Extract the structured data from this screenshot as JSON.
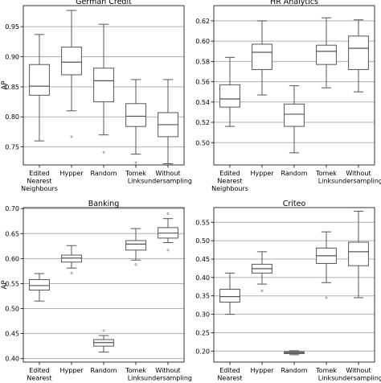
{
  "chart_data": [
    {
      "type": "box",
      "title": "German Credit",
      "ylabel": "AP",
      "xlabel": "",
      "ylim": [
        0.72,
        0.985
      ],
      "yticks": [
        0.75,
        0.8,
        0.85,
        0.9,
        0.95
      ],
      "tick_labels": [
        "0.75",
        "0.80",
        "0.85",
        "0.90",
        "0.95"
      ],
      "grid": "horizontal",
      "categories": [
        [
          "Edited",
          "Nearest",
          "Neighbours"
        ],
        [
          "Hypper"
        ],
        [
          "Random"
        ],
        [
          "Tomek",
          "Links"
        ],
        [
          "Without",
          "undersampling"
        ]
      ],
      "boxes": [
        {
          "whislo": 0.76,
          "q1": 0.836,
          "med": 0.851,
          "q3": 0.887,
          "whishi": 0.937,
          "fliers": []
        },
        {
          "whislo": 0.81,
          "q1": 0.87,
          "med": 0.891,
          "q3": 0.916,
          "whishi": 0.977,
          "fliers": [
            0.767
          ]
        },
        {
          "whislo": 0.77,
          "q1": 0.825,
          "med": 0.86,
          "q3": 0.881,
          "whishi": 0.954,
          "fliers": [
            0.741
          ]
        },
        {
          "whislo": 0.738,
          "q1": 0.784,
          "med": 0.801,
          "q3": 0.822,
          "whishi": 0.862,
          "fliers": [
            0.724
          ]
        },
        {
          "whislo": 0.722,
          "q1": 0.767,
          "med": 0.787,
          "q3": 0.807,
          "whishi": 0.862,
          "fliers": []
        }
      ]
    },
    {
      "type": "box",
      "title": "HR Analytics",
      "ylabel": "",
      "xlabel": "",
      "ylim": [
        0.478,
        0.635
      ],
      "yticks": [
        0.5,
        0.52,
        0.54,
        0.56,
        0.58,
        0.6,
        0.62
      ],
      "tick_labels": [
        "0.50",
        "0.52",
        "0.54",
        "0.56",
        "0.58",
        "0.60",
        "0.62"
      ],
      "grid": "horizontal",
      "categories": [
        [
          "Edited",
          "Nearest",
          "Neighbours"
        ],
        [
          "Hypper"
        ],
        [
          "Random"
        ],
        [
          "Tomek",
          "Links"
        ],
        [
          "Without",
          "undersampling"
        ]
      ],
      "boxes": [
        {
          "whislo": 0.516,
          "q1": 0.535,
          "med": 0.543,
          "q3": 0.557,
          "whishi": 0.584,
          "fliers": []
        },
        {
          "whislo": 0.547,
          "q1": 0.572,
          "med": 0.589,
          "q3": 0.597,
          "whishi": 0.62,
          "fliers": []
        },
        {
          "whislo": 0.49,
          "q1": 0.516,
          "med": 0.528,
          "q3": 0.538,
          "whishi": 0.556,
          "fliers": []
        },
        {
          "whislo": 0.554,
          "q1": 0.577,
          "med": 0.59,
          "q3": 0.596,
          "whishi": 0.623,
          "fliers": []
        },
        {
          "whislo": 0.55,
          "q1": 0.572,
          "med": 0.593,
          "q3": 0.605,
          "whishi": 0.621,
          "fliers": []
        }
      ]
    },
    {
      "type": "box",
      "title": "Banking",
      "ylabel": "AP",
      "xlabel": "",
      "ylim": [
        0.393,
        0.702
      ],
      "yticks": [
        0.4,
        0.45,
        0.5,
        0.55,
        0.6,
        0.65,
        0.7
      ],
      "tick_labels": [
        "0.40",
        "0.45",
        "0.50",
        "0.55",
        "0.60",
        "0.65",
        "0.70"
      ],
      "grid": "horizontal",
      "categories": [
        [
          "Edited",
          "Nearest",
          "Neighbours"
        ],
        [
          "Hypper"
        ],
        [
          "Random"
        ],
        [
          "Tomek",
          "Links"
        ],
        [
          "Without",
          "undersampling"
        ]
      ],
      "boxes": [
        {
          "whislo": 0.515,
          "q1": 0.537,
          "med": 0.546,
          "q3": 0.558,
          "whishi": 0.57,
          "fliers": []
        },
        {
          "whislo": 0.581,
          "q1": 0.593,
          "med": 0.601,
          "q3": 0.607,
          "whishi": 0.626,
          "fliers": [
            0.571
          ]
        },
        {
          "whislo": 0.413,
          "q1": 0.425,
          "med": 0.432,
          "q3": 0.438,
          "whishi": 0.446,
          "fliers": [
            0.456
          ]
        },
        {
          "whislo": 0.597,
          "q1": 0.617,
          "med": 0.629,
          "q3": 0.636,
          "whishi": 0.66,
          "fliers": [
            0.588
          ]
        },
        {
          "whislo": 0.632,
          "q1": 0.641,
          "med": 0.651,
          "q3": 0.662,
          "whishi": 0.68,
          "fliers": [
            0.617,
            0.69
          ]
        }
      ]
    },
    {
      "type": "box",
      "title": "Criteo",
      "ylabel": "",
      "xlabel": "",
      "ylim": [
        0.17,
        0.59
      ],
      "yticks": [
        0.2,
        0.25,
        0.3,
        0.35,
        0.4,
        0.45,
        0.5,
        0.55
      ],
      "tick_labels": [
        "0.20",
        "0.25",
        "0.30",
        "0.35",
        "0.40",
        "0.45",
        "0.50",
        "0.55"
      ],
      "grid": "horizontal",
      "categories": [
        [
          "Edited",
          "Nearest",
          "Neighbours"
        ],
        [
          "Hypper"
        ],
        [
          "Random"
        ],
        [
          "Tomek",
          "Links"
        ],
        [
          "Without",
          "undersampling"
        ]
      ],
      "boxes": [
        {
          "whislo": 0.3,
          "q1": 0.333,
          "med": 0.348,
          "q3": 0.368,
          "whishi": 0.412,
          "fliers": []
        },
        {
          "whislo": 0.382,
          "q1": 0.412,
          "med": 0.424,
          "q3": 0.436,
          "whishi": 0.47,
          "fliers": [
            0.364
          ]
        },
        {
          "whislo": 0.19,
          "q1": 0.193,
          "med": 0.196,
          "q3": 0.198,
          "whishi": 0.201,
          "fliers": []
        },
        {
          "whislo": 0.386,
          "q1": 0.438,
          "med": 0.459,
          "q3": 0.48,
          "whishi": 0.524,
          "fliers": [
            0.345
          ]
        },
        {
          "whislo": 0.345,
          "q1": 0.432,
          "med": 0.47,
          "q3": 0.496,
          "whishi": 0.58,
          "fliers": []
        }
      ]
    }
  ]
}
